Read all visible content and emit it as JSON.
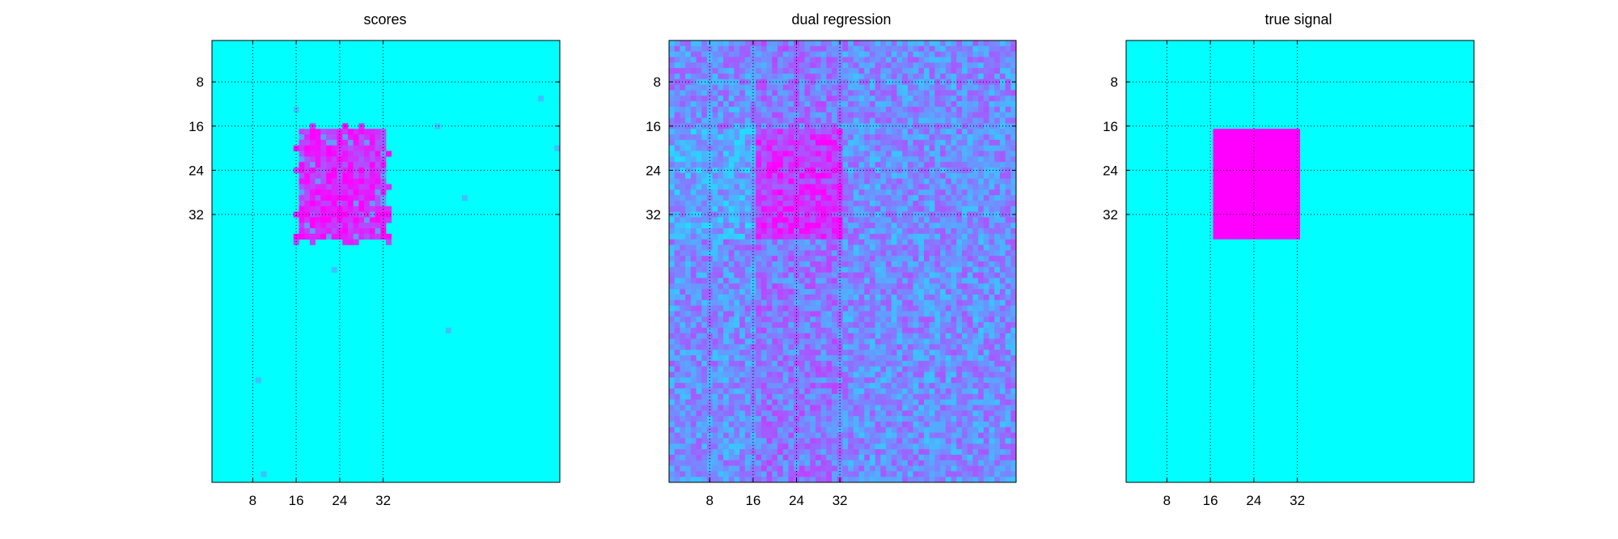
{
  "chart_data": [
    {
      "type": "heatmap",
      "title": "scores",
      "grid": true,
      "colormap": [
        "#00ffff",
        "#ff00ff"
      ],
      "xticks": [
        8,
        16,
        24,
        32
      ],
      "yticks": [
        8,
        16,
        24,
        32
      ],
      "xlim": [
        0.5,
        64.5
      ],
      "ylim": [
        0.5,
        80.5
      ],
      "signal_region": {
        "x": [
          17,
          32
        ],
        "y": [
          17,
          36
        ]
      },
      "description_values": {
        "background": 0.0,
        "signal": 0.85
      }
    },
    {
      "type": "heatmap",
      "title": "dual regression",
      "grid": true,
      "colormap": [
        "#00ffff",
        "#ff00ff"
      ],
      "xticks": [
        8,
        16,
        24,
        32
      ],
      "yticks": [
        8,
        16,
        24,
        32
      ],
      "xlim": [
        0.5,
        64.5
      ],
      "ylim": [
        0.5,
        80.5
      ],
      "signal_region": {
        "x": [
          17,
          32
        ],
        "y": [
          17,
          36
        ]
      },
      "description_values": {
        "background": 0.45,
        "signal": 0.8
      }
    },
    {
      "type": "heatmap",
      "title": "true signal",
      "grid": true,
      "colormap": [
        "#00ffff",
        "#ff00ff"
      ],
      "xticks": [
        8,
        16,
        24,
        32
      ],
      "yticks": [
        8,
        16,
        24,
        32
      ],
      "xlim": [
        0.5,
        64.5
      ],
      "ylim": [
        0.5,
        80.5
      ],
      "signal_region": {
        "x": [
          17,
          32
        ],
        "y": [
          17,
          36
        ]
      },
      "description_values": {
        "background": 0.0,
        "signal": 1.0
      }
    }
  ]
}
